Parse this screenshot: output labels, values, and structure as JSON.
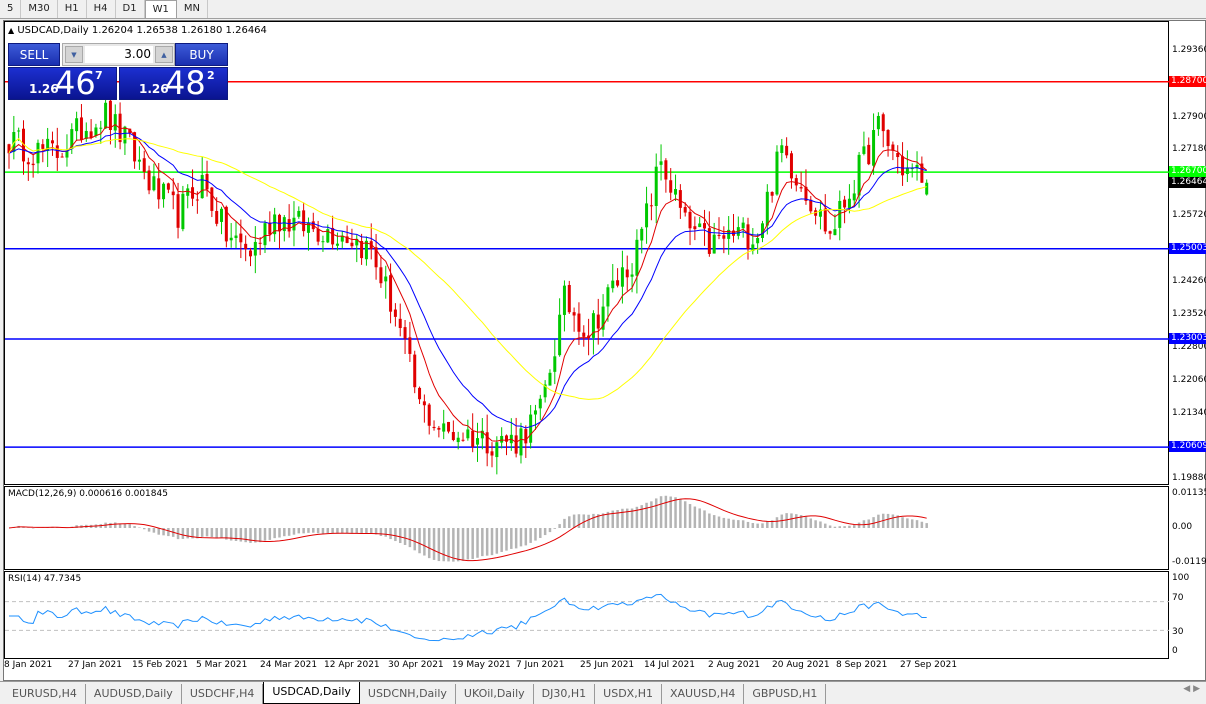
{
  "timeframes": [
    "5",
    "M30",
    "H1",
    "H4",
    "D1",
    "W1",
    "MN"
  ],
  "selected_timeframe": "W1",
  "header": {
    "symbol": "USDCAD,Daily",
    "open": "1.26204",
    "high": "1.26538",
    "low": "1.26180",
    "close": "1.26464"
  },
  "trade_panel": {
    "sell_label": "SELL",
    "buy_label": "BUY",
    "lot": "3.00",
    "sell_prefix": "1.26",
    "sell_big": "46",
    "sell_pip": "7",
    "buy_prefix": "1.26",
    "buy_big": "48",
    "buy_pip": "2"
  },
  "price_axis": [
    "1.29360",
    "1.27900",
    "1.27180",
    "1.25720",
    "1.24260",
    "1.23520",
    "1.22800",
    "1.22060",
    "1.21340",
    "1.19880"
  ],
  "levels": [
    {
      "label": "1.28700",
      "price": 1.287,
      "color": "#ff0000"
    },
    {
      "label": "1.26700",
      "price": 1.267,
      "color": "#00ff00"
    },
    {
      "label": "1.25003",
      "price": 1.25003,
      "color": "#0000ff"
    },
    {
      "label": "1.23003",
      "price": 1.23003,
      "color": "#0000ff"
    },
    {
      "label": "1.20609",
      "price": 1.20609,
      "color": "#0000ff"
    }
  ],
  "current_price": {
    "label": "1.26464",
    "color": "#000000"
  },
  "macd": {
    "title": "MACD(12,26,9) 0.000616 0.001845",
    "axis": [
      "0.01135",
      "0.00",
      "-0.01190"
    ]
  },
  "rsi": {
    "title": "RSI(14) 47.7345",
    "axis": [
      "100",
      "70",
      "30",
      "0"
    ]
  },
  "time_axis": [
    "8 Jan 2021",
    "27 Jan 2021",
    "15 Feb 2021",
    "5 Mar 2021",
    "24 Mar 2021",
    "12 Apr 2021",
    "30 Apr 2021",
    "19 May 2021",
    "7 Jun 2021",
    "25 Jun 2021",
    "14 Jul 2021",
    "2 Aug 2021",
    "20 Aug 2021",
    "8 Sep 2021",
    "27 Sep 2021"
  ],
  "tabs": [
    "EURUSD,H4",
    "AUDUSD,Daily",
    "USDCHF,H4",
    "USDCAD,Daily",
    "USDCNH,Daily",
    "UKOil,Daily",
    "DJ30,H1",
    "USDX,H1",
    "XAUUSD,H4",
    "GBPUSD,H1"
  ],
  "active_tab": "USDCAD,Daily",
  "chart_data": {
    "type": "candlestick",
    "symbol": "USDCAD",
    "timeframe": "Daily",
    "ylim": [
      1.1988,
      1.2936
    ],
    "weekly_closes": [
      1.274,
      1.2717,
      1.2713,
      1.2766,
      1.2798,
      1.2726,
      1.2632,
      1.2578,
      1.265,
      1.253,
      1.2492,
      1.2574,
      1.2553,
      1.2542,
      1.2532,
      1.2494,
      1.2356,
      1.2152,
      1.2093,
      1.209,
      1.2076,
      1.2076,
      1.2138,
      1.2385,
      1.2318,
      1.2414,
      1.2492,
      1.2696,
      1.2553,
      1.2508,
      1.2532,
      1.2536,
      1.2722,
      1.263,
      1.2532,
      1.265,
      1.2768,
      1.2681,
      1.2654
    ],
    "last_bar": {
      "open": 1.26204,
      "high": 1.26538,
      "low": 1.2618,
      "close": 1.26464
    },
    "bull_color": "#00c800",
    "bear_color": "#e00000",
    "ma_colors": [
      "#e00000",
      "#0000ff",
      "#ffff00"
    ],
    "macd_hist_color": "#b4b4b4",
    "macd_signal_color": "#e00000",
    "rsi_color": "#1e90ff"
  }
}
